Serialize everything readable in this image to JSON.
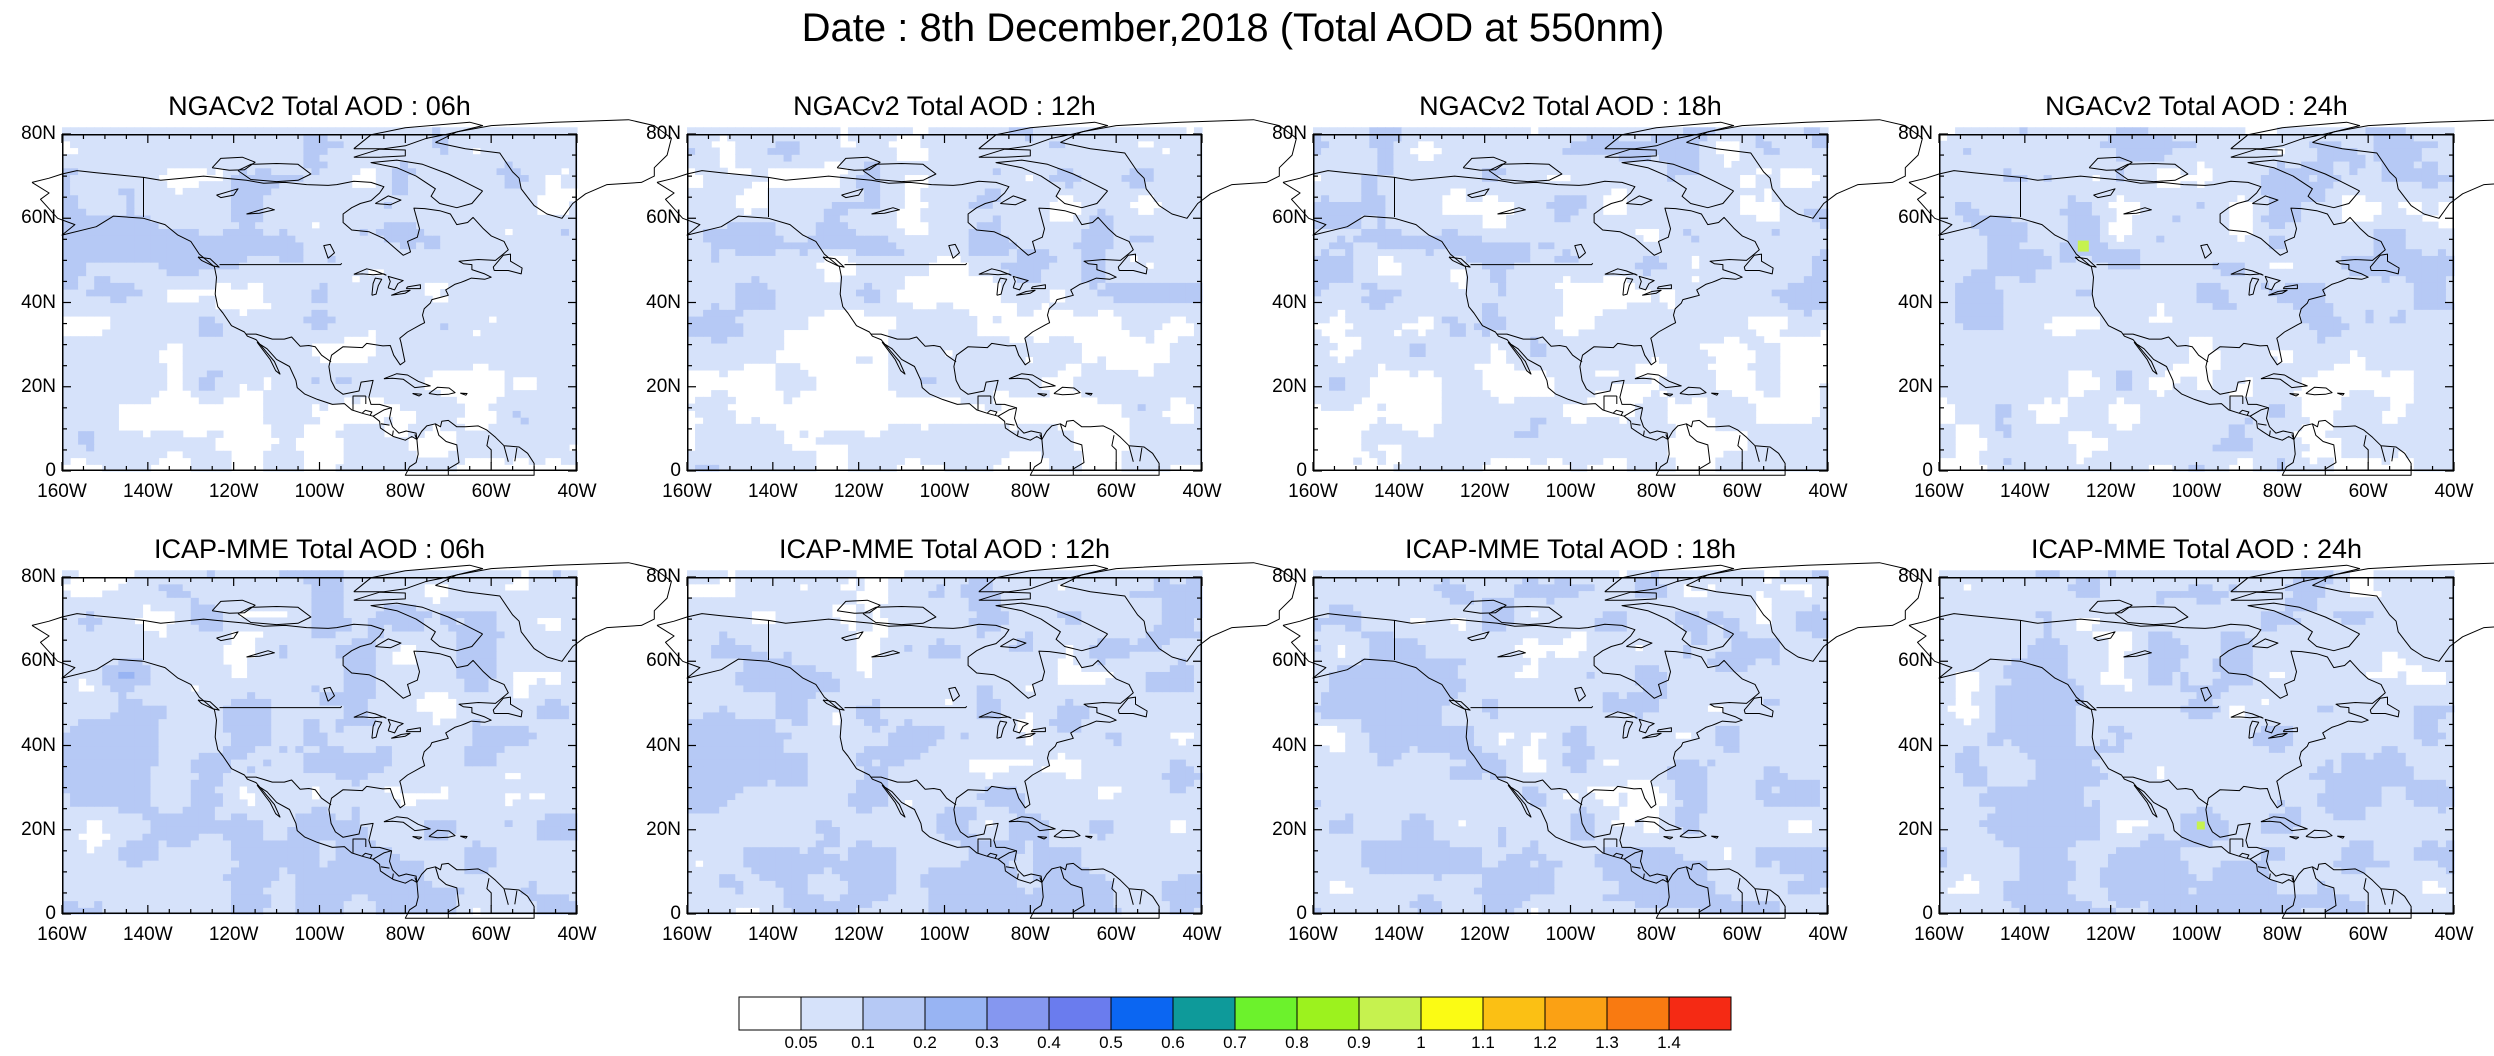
{
  "suptitle": "Date : 8th December,2018 (Total AOD at 550nm)",
  "chart_data": [
    {
      "type": "heatmap",
      "title": "NGACv2 Total AOD : 06h",
      "x_ticks": [
        "160W",
        "140W",
        "120W",
        "100W",
        "80W",
        "60W",
        "40W"
      ],
      "y_ticks": [
        "0",
        "20N",
        "40N",
        "60N",
        "80N"
      ],
      "xlim": [
        -160,
        -40
      ],
      "ylim": [
        0,
        80
      ]
    },
    {
      "type": "heatmap",
      "title": "NGACv2 Total AOD : 12h",
      "x_ticks": [
        "160W",
        "140W",
        "120W",
        "100W",
        "80W",
        "60W",
        "40W"
      ],
      "y_ticks": [
        "0",
        "20N",
        "40N",
        "60N",
        "80N"
      ],
      "xlim": [
        -160,
        -40
      ],
      "ylim": [
        0,
        80
      ]
    },
    {
      "type": "heatmap",
      "title": "NGACv2 Total AOD : 18h",
      "x_ticks": [
        "160W",
        "140W",
        "120W",
        "100W",
        "80W",
        "60W",
        "40W"
      ],
      "y_ticks": [
        "0",
        "20N",
        "40N",
        "60N",
        "80N"
      ],
      "xlim": [
        -160,
        -40
      ],
      "ylim": [
        0,
        80
      ]
    },
    {
      "type": "heatmap",
      "title": "NGACv2 Total AOD : 24h",
      "x_ticks": [
        "160W",
        "140W",
        "120W",
        "100W",
        "80W",
        "60W",
        "40W"
      ],
      "y_ticks": [
        "0",
        "20N",
        "40N",
        "60N",
        "80N"
      ],
      "xlim": [
        -160,
        -40
      ],
      "ylim": [
        0,
        80
      ]
    },
    {
      "type": "heatmap",
      "title": "ICAP-MME Total AOD : 06h",
      "x_ticks": [
        "160W",
        "140W",
        "120W",
        "100W",
        "80W",
        "60W",
        "40W"
      ],
      "y_ticks": [
        "0",
        "20N",
        "40N",
        "60N",
        "80N"
      ],
      "xlim": [
        -160,
        -40
      ],
      "ylim": [
        0,
        80
      ]
    },
    {
      "type": "heatmap",
      "title": "ICAP-MME Total AOD : 12h",
      "x_ticks": [
        "160W",
        "140W",
        "120W",
        "100W",
        "80W",
        "60W",
        "40W"
      ],
      "y_ticks": [
        "0",
        "20N",
        "40N",
        "60N",
        "80N"
      ],
      "xlim": [
        -160,
        -40
      ],
      "ylim": [
        0,
        80
      ]
    },
    {
      "type": "heatmap",
      "title": "ICAP-MME Total AOD : 18h",
      "x_ticks": [
        "160W",
        "140W",
        "120W",
        "100W",
        "80W",
        "60W",
        "40W"
      ],
      "y_ticks": [
        "0",
        "20N",
        "40N",
        "60N",
        "80N"
      ],
      "xlim": [
        -160,
        -40
      ],
      "ylim": [
        0,
        80
      ]
    },
    {
      "type": "heatmap",
      "title": "ICAP-MME Total AOD : 24h",
      "x_ticks": [
        "160W",
        "140W",
        "120W",
        "100W",
        "80W",
        "60W",
        "40W"
      ],
      "y_ticks": [
        "0",
        "20N",
        "40N",
        "60N",
        "80N"
      ],
      "xlim": [
        -160,
        -40
      ],
      "ylim": [
        0,
        80
      ]
    }
  ],
  "colorbar": {
    "levels": [
      "0.05",
      "0.1",
      "0.2",
      "0.3",
      "0.4",
      "0.5",
      "0.6",
      "0.7",
      "0.8",
      "0.9",
      "1",
      "1.1",
      "1.2",
      "1.3",
      "1.4"
    ],
    "colors": [
      "#ffffff",
      "#d6e2fa",
      "#b6c9f5",
      "#98b4f3",
      "#8597f0",
      "#6a7cee",
      "#0b66f2",
      "#0e9a9a",
      "#6cf22c",
      "#9cf21e",
      "#c6f24f",
      "#fbfb14",
      "#fbc014",
      "#fba114",
      "#f97a11",
      "#f52a14"
    ]
  },
  "map_colors": {
    "land_line": "#000000",
    "frame": "#000000"
  }
}
